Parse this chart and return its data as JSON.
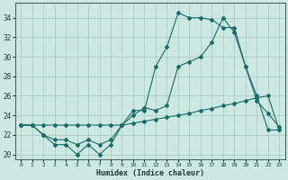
{
  "xlabel": "Humidex (Indice chaleur)",
  "bg_color": "#cce8e0",
  "grid_color": "#aacfc8",
  "line_color": "#1a6b6b",
  "xlim": [
    -0.5,
    23.5
  ],
  "ylim": [
    19.5,
    35.5
  ],
  "yticks": [
    20,
    22,
    24,
    26,
    28,
    30,
    32,
    34
  ],
  "xticks": [
    0,
    1,
    2,
    3,
    4,
    5,
    6,
    7,
    8,
    9,
    10,
    11,
    12,
    13,
    14,
    15,
    16,
    17,
    18,
    19,
    20,
    21,
    22,
    23
  ],
  "line1_x": [
    0,
    1,
    2,
    3,
    4,
    5,
    6,
    7,
    8,
    9,
    10,
    11,
    12,
    13,
    14,
    15,
    16,
    17,
    18,
    19,
    20,
    21,
    22,
    23
  ],
  "line1_y": [
    23.0,
    23.0,
    22.0,
    21.0,
    21.0,
    20.0,
    21.0,
    20.0,
    21.0,
    23.0,
    24.5,
    24.5,
    29.0,
    31.0,
    34.5,
    34.0,
    34.0,
    33.8,
    33.0,
    33.0,
    29.0,
    25.5,
    24.2,
    22.8
  ],
  "line2_x": [
    0,
    1,
    2,
    3,
    4,
    5,
    6,
    7,
    8,
    9,
    10,
    11,
    12,
    13,
    14,
    15,
    16,
    17,
    18,
    19,
    20,
    21,
    22,
    23
  ],
  "line2_y": [
    23.0,
    23.0,
    22.0,
    21.5,
    21.5,
    21.0,
    21.5,
    21.0,
    21.5,
    23.0,
    24.0,
    24.8,
    24.5,
    25.0,
    29.0,
    29.5,
    30.0,
    31.5,
    34.0,
    32.5,
    29.0,
    26.0,
    22.5,
    22.5
  ],
  "line3_x": [
    0,
    1,
    2,
    3,
    4,
    5,
    6,
    7,
    8,
    9,
    10,
    11,
    12,
    13,
    14,
    15,
    16,
    17,
    18,
    19,
    20,
    21,
    22,
    23
  ],
  "line3_y": [
    23.0,
    23.0,
    23.0,
    23.0,
    23.0,
    23.0,
    23.0,
    23.0,
    23.0,
    23.0,
    23.2,
    23.4,
    23.6,
    23.8,
    24.0,
    24.2,
    24.5,
    24.7,
    25.0,
    25.2,
    25.5,
    25.8,
    26.0,
    22.5
  ]
}
